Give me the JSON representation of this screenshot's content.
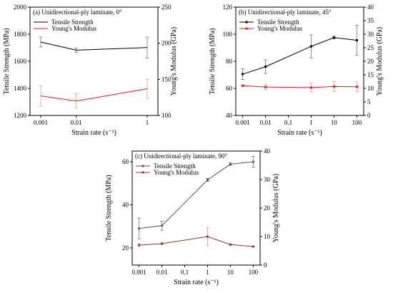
{
  "chart_data": [
    {
      "type": "line",
      "title": "(a) Unidirectional-ply laminate, 0°",
      "xlabel": "Strain rate (s⁻¹)",
      "xscale": "log",
      "x": [
        0.001,
        0.01,
        1
      ],
      "xticks": [
        0.001,
        0.01,
        1
      ],
      "xtick_labels": [
        "0.001",
        "0.01",
        "1"
      ],
      "xlim": [
        0.0005,
        2
      ],
      "ylabel": "Tensile Strength (MPa)",
      "ylim": [
        1200,
        2000
      ],
      "yticks": [
        1200,
        1400,
        1600,
        1800,
        2000
      ],
      "ytick_labels": [
        "1200",
        "1400",
        "1600",
        "1800",
        "2000"
      ],
      "y2label": "Young's Modulus (GPa)",
      "y2lim": [
        100,
        250
      ],
      "y2ticks": [
        100,
        150,
        200,
        250
      ],
      "y2tick_labels": [
        "100",
        "150",
        "200",
        "250"
      ],
      "legend": "top-left",
      "series": [
        {
          "name": "Tensile Strength",
          "axis": "left",
          "color": "#000000",
          "marker": "none",
          "values": [
            1742,
            1682,
            1701
          ],
          "errors": [
            37,
            16,
            77
          ]
        },
        {
          "name": "Young's Modulus",
          "axis": "right",
          "color": "#e8191b",
          "marker": "none",
          "values": [
            127,
            120,
            137
          ],
          "errors": [
            14,
            10,
            13
          ]
        }
      ]
    },
    {
      "type": "line",
      "title": "(b) Unidirectional-ply laminate, 45°",
      "xlabel": "Strain rate (s⁻¹)",
      "xscale": "log",
      "x": [
        0.001,
        0.01,
        1,
        10,
        100
      ],
      "xticks": [
        0.001,
        0.01,
        0.1,
        1,
        10,
        100
      ],
      "xtick_labels": [
        "0.001",
        "0.01",
        "0.1",
        "1",
        "10",
        "100"
      ],
      "xlim": [
        0.0005,
        200
      ],
      "ylabel": "Tensile Strength (MPa)",
      "ylim": [
        40,
        120
      ],
      "yticks": [
        40,
        60,
        80,
        100,
        120
      ],
      "ytick_labels": [
        "40",
        "60",
        "80",
        "100",
        "120"
      ],
      "y2label": "Young's Modulus (GPa)",
      "y2lim": [
        0,
        40
      ],
      "y2ticks": [
        0,
        5,
        10,
        15,
        20,
        25,
        30,
        35,
        40
      ],
      "y2tick_labels": [
        "0",
        "5",
        "10",
        "15",
        "20",
        "25",
        "30",
        "35",
        "40"
      ],
      "legend": "top-left",
      "series": [
        {
          "name": "Tensile Strength",
          "axis": "left",
          "color": "#000000",
          "marker": "square",
          "values": [
            70.5,
            76,
            91,
            97.5,
            95.5
          ],
          "errors": [
            4,
            5,
            8.5,
            1,
            11
          ]
        },
        {
          "name": "Young's Modulus",
          "axis": "right",
          "color": "#e8191b",
          "marker": "square",
          "values": [
            11,
            10.5,
            10.3,
            10.7,
            10.6
          ],
          "errors": [
            0.3,
            0.9,
            1.6,
            1.9,
            1.8
          ]
        }
      ]
    },
    {
      "type": "line",
      "title": "(c) Unidirectional-ply laminate, 90°",
      "xlabel": "Strain rate (s⁻¹)",
      "xscale": "log",
      "x": [
        0.001,
        0.01,
        1,
        10,
        100
      ],
      "xticks": [
        0.001,
        0.01,
        0.1,
        1,
        10,
        100
      ],
      "xtick_labels": [
        "0.001",
        "0.01",
        "0.1",
        "1",
        "10",
        "100"
      ],
      "xlim": [
        0.0005,
        200
      ],
      "ylabel": "Tensile Strength (MPa)",
      "ylim": [
        12,
        65
      ],
      "yticks": [
        20,
        40,
        60
      ],
      "ytick_labels": [
        "20",
        "40",
        "60"
      ],
      "y2label": "Young's Modulus (GPa)",
      "y2lim": [
        0,
        40
      ],
      "y2ticks": [
        0,
        10,
        20,
        30,
        40
      ],
      "y2tick_labels": [
        "0",
        "10",
        "20",
        "30",
        "40"
      ],
      "legend": "top-left",
      "series": [
        {
          "name": "Tensile Strength",
          "axis": "left",
          "color": "#555555",
          "marker": "dot",
          "values": [
            29,
            30.3,
            51.6,
            58.9,
            60
          ],
          "errors": [
            4.8,
            2.1,
            0.7,
            0.6,
            2.5
          ]
        },
        {
          "name": "Young's Modulus",
          "axis": "right",
          "color": "#8a3b2e",
          "marker": "dot",
          "values": [
            7,
            7.5,
            10,
            7.2,
            6.5
          ],
          "errors": [
            0.5,
            0.4,
            3.2,
            0.3,
            0.2
          ]
        }
      ]
    }
  ]
}
